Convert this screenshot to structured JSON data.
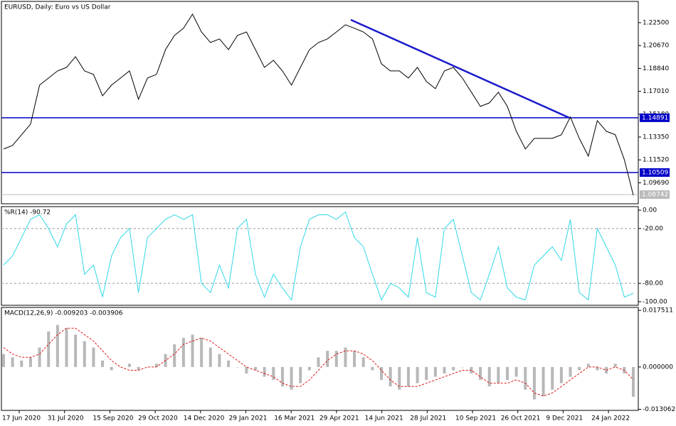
{
  "chart_data": [
    {
      "type": "line",
      "title": "EURUSD, Daily: Euro vs US Dollar",
      "color": "#000000",
      "values": [
        1.1239,
        1.1268,
        1.1353,
        1.1438,
        1.175,
        1.1807,
        1.1864,
        1.1892,
        1.1978,
        1.1864,
        1.1836,
        1.1665,
        1.175,
        1.1807,
        1.1864,
        1.1637,
        1.1807,
        1.1836,
        1.2034,
        1.2148,
        1.2205,
        1.2318,
        1.2176,
        1.2091,
        1.212,
        1.2034,
        1.2148,
        1.2176,
        1.2034,
        1.1892,
        1.1949,
        1.1864,
        1.175,
        1.1892,
        1.2034,
        1.2091,
        1.212,
        1.2176,
        1.2233,
        1.2205,
        1.2176,
        1.212,
        1.1921,
        1.1864,
        1.1864,
        1.1807,
        1.1892,
        1.1779,
        1.1722,
        1.1864,
        1.1892,
        1.1807,
        1.1694,
        1.158,
        1.1608,
        1.1694,
        1.158,
        1.1381,
        1.1239,
        1.1324,
        1.1324,
        1.1324,
        1.1353,
        1.1495,
        1.1324,
        1.1182,
        1.1466,
        1.1381,
        1.1353,
        1.1154,
        1.087
      ],
      "ylim": [
        1.0801,
        1.242
      ],
      "yticks": [
        {
          "value": 1.225,
          "label": "1.22500"
        },
        {
          "value": 1.2067,
          "label": "1.20670"
        },
        {
          "value": 1.1884,
          "label": "1.18840"
        },
        {
          "value": 1.1701,
          "label": "1.17010"
        },
        {
          "value": 1.1518,
          "label": "1.15180"
        },
        {
          "value": 1.1335,
          "label": "1.13350"
        },
        {
          "value": 1.1152,
          "label": "1.11520"
        },
        {
          "value": 1.0969,
          "label": "1.09690"
        }
      ],
      "levels": [
        1.14891,
        1.10509
      ],
      "level_color": "#0000c8",
      "last_price": 1.08742,
      "trendline": [
        1.2273,
        1.1489
      ],
      "trendline_color": "#1a1acc",
      "x_labels": [
        "17 Jun 2020",
        "31 Jul 2020",
        "15 Sep 2020",
        "29 Oct 2020",
        "14 Dec 2020",
        "29 Jan 2021",
        "16 Mar 2021",
        "29 Apr 2021",
        "14 Jun 2021",
        "28 Jul 2021",
        "10 Sep 2021",
        "26 Oct 2021",
        "9 Dec 2021",
        "24 Jan 2022"
      ]
    },
    {
      "type": "line",
      "title": "%R(14) -90.72",
      "color": "#30d8e8",
      "values": [
        -60,
        -50,
        -30,
        -10,
        -5,
        -20,
        -40,
        -15,
        -5,
        -70,
        -60,
        -95,
        -50,
        -30,
        -20,
        -90,
        -30,
        -20,
        -10,
        -5,
        -10,
        -5,
        -80,
        -90,
        -60,
        -85,
        -20,
        -10,
        -70,
        -95,
        -70,
        -85,
        -98,
        -40,
        -10,
        -5,
        -5,
        -10,
        -2,
        -30,
        -40,
        -70,
        -98,
        -80,
        -85,
        -95,
        -30,
        -90,
        -95,
        -20,
        -10,
        -50,
        -90,
        -98,
        -70,
        -40,
        -85,
        -95,
        -98,
        -60,
        -50,
        -40,
        -55,
        -10,
        -90,
        -98,
        -20,
        -40,
        -60,
        -95,
        -90.72
      ],
      "ylim": [
        -103.9,
        3.9
      ],
      "yticks": [
        {
          "value": 0,
          "label": "0.00"
        },
        {
          "value": -20,
          "label": "-20.00"
        },
        {
          "value": -80,
          "label": "-80.00"
        },
        {
          "value": -100,
          "label": "-100.00"
        }
      ],
      "levels": [
        -20,
        -80
      ]
    },
    {
      "type": "macd",
      "title": "MACD(12,26,9) -0.009203 -0.003906",
      "histogram": {
        "color": "#b8b8b8",
        "values": [
          0.004,
          0.003,
          0.002,
          0.003,
          0.006,
          0.011,
          0.013,
          0.012,
          0.01,
          0.008,
          0.006,
          0.002,
          -0.001,
          0.0,
          0.001,
          -0.001,
          0.0,
          0.001,
          0.004,
          0.007,
          0.009,
          0.01,
          0.009,
          0.006,
          0.004,
          0.002,
          0.0,
          -0.002,
          -0.001,
          -0.003,
          -0.004,
          -0.006,
          -0.007,
          -0.005,
          -0.001,
          0.003,
          0.005,
          0.005,
          0.006,
          0.005,
          0.003,
          -0.001,
          -0.004,
          -0.006,
          -0.007,
          -0.006,
          -0.005,
          -0.004,
          -0.003,
          -0.002,
          -0.001,
          0.0,
          -0.002,
          -0.004,
          -0.006,
          -0.005,
          -0.004,
          -0.003,
          -0.007,
          -0.01,
          -0.009,
          -0.007,
          -0.005,
          -0.003,
          -0.001,
          0.001,
          -0.001,
          -0.002,
          0.001,
          -0.002,
          -0.009203
        ]
      },
      "signal": {
        "color": "#e01818",
        "values": [
          0.006,
          0.004,
          0.003,
          0.003,
          0.004,
          0.007,
          0.01,
          0.012,
          0.012,
          0.01,
          0.008,
          0.005,
          0.002,
          0.0,
          -0.001,
          -0.001,
          0.0,
          0.0,
          0.002,
          0.004,
          0.007,
          0.008,
          0.009,
          0.008,
          0.006,
          0.004,
          0.002,
          0.0,
          -0.001,
          -0.002,
          -0.003,
          -0.005,
          -0.006,
          -0.006,
          -0.004,
          -0.001,
          0.002,
          0.004,
          0.005,
          0.005,
          0.004,
          0.002,
          -0.001,
          -0.004,
          -0.006,
          -0.006,
          -0.006,
          -0.005,
          -0.004,
          -0.003,
          -0.002,
          -0.001,
          -0.001,
          -0.003,
          -0.005,
          -0.005,
          -0.005,
          -0.004,
          -0.005,
          -0.008,
          -0.009,
          -0.008,
          -0.006,
          -0.004,
          -0.002,
          0.0,
          0.0,
          -0.001,
          0.0,
          -0.001,
          -0.003906
        ]
      },
      "ylim": [
        -0.0134,
        0.0184
      ],
      "yticks": [
        0.017511,
        {
          "value": 0,
          "label": "0.000000"
        },
        -0.013062
      ]
    }
  ]
}
